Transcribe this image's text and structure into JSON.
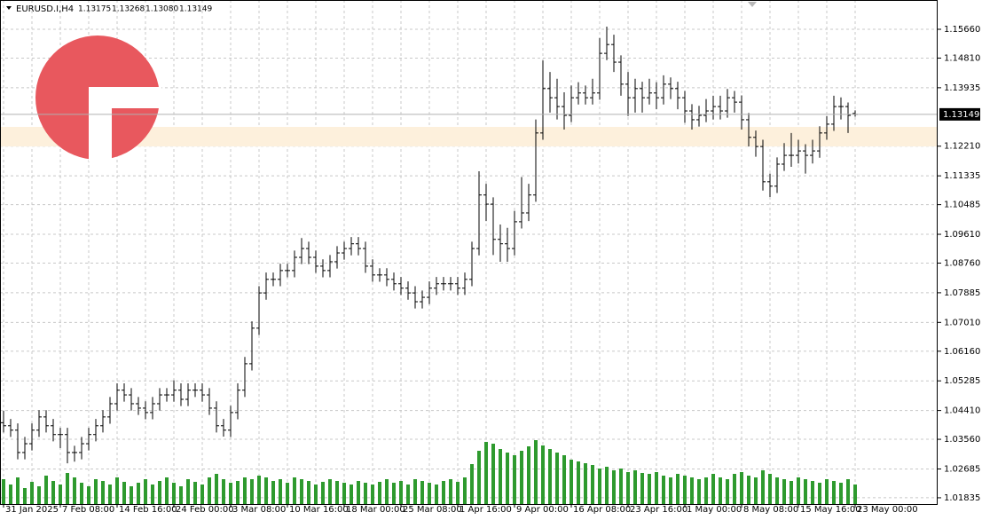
{
  "chart_data": {
    "type": "ohlc",
    "title": "EURUSD.I,H4",
    "last_bar_labels": [
      "1.13175",
      "1.13268",
      "1.13080",
      "1.13149"
    ],
    "current_price": 1.13149,
    "color": "#000000",
    "volume_color": "#2e9a2e",
    "grid": true,
    "ylim": [
      1.0165,
      1.16524
    ],
    "yticks": [
      {
        "value": 1.1566,
        "label": "1.15660"
      },
      {
        "value": 1.1481,
        "label": "1.14810"
      },
      {
        "value": 1.13935,
        "label": "1.13935"
      },
      {
        "value": 1.1221,
        "label": "1.12210"
      },
      {
        "value": 1.11335,
        "label": "1.11335"
      },
      {
        "value": 1.10485,
        "label": "1.10485"
      },
      {
        "value": 1.0961,
        "label": "1.09610"
      },
      {
        "value": 1.0876,
        "label": "1.08760"
      },
      {
        "value": 1.07885,
        "label": "1.07885"
      },
      {
        "value": 1.0701,
        "label": "1.07010"
      },
      {
        "value": 1.0616,
        "label": "1.06160"
      },
      {
        "value": 1.05285,
        "label": "1.05285"
      },
      {
        "value": 1.0441,
        "label": "1.04410"
      },
      {
        "value": 1.0356,
        "label": "1.03560"
      },
      {
        "value": 1.02685,
        "label": "1.02685"
      },
      {
        "value": 1.01835,
        "label": "1.01835"
      }
    ],
    "volume_lim": [
      0,
      100
    ],
    "categories": [
      "31 Jan 2025",
      null,
      null,
      null,
      null,
      null,
      null,
      null,
      "7 Feb 08:00",
      null,
      null,
      null,
      null,
      null,
      null,
      null,
      "14 Feb 16:00",
      null,
      null,
      null,
      null,
      null,
      null,
      null,
      "24 Feb 00:00",
      null,
      null,
      null,
      null,
      null,
      null,
      null,
      "3 Mar 08:00",
      null,
      null,
      null,
      null,
      null,
      null,
      null,
      "10 Mar 16:00",
      null,
      null,
      null,
      null,
      null,
      null,
      null,
      "18 Mar 00:00",
      null,
      null,
      null,
      null,
      null,
      null,
      null,
      "25 Mar 08:00",
      null,
      null,
      null,
      null,
      null,
      null,
      null,
      "1 Apr 16:00",
      null,
      null,
      null,
      null,
      null,
      null,
      null,
      "9 Apr 00:00",
      null,
      null,
      null,
      null,
      null,
      null,
      null,
      "16 Apr 08:00",
      null,
      null,
      null,
      null,
      null,
      null,
      null,
      "23 Apr 16:00",
      null,
      null,
      null,
      null,
      null,
      null,
      null,
      "1 May 00:00",
      null,
      null,
      null,
      null,
      null,
      null,
      null,
      "8 May 08:00",
      null,
      null,
      null,
      null,
      null,
      null,
      null,
      "15 May 16:00",
      null,
      null,
      null,
      null,
      null,
      null,
      null,
      "23 May 00:00"
    ],
    "open": [
      1.0405,
      1.0396,
      1.0383,
      1.0317,
      1.0343,
      1.0383,
      1.0422,
      1.0396,
      1.037,
      1.037,
      1.0317,
      1.0317,
      1.0343,
      1.037,
      1.0396,
      1.0422,
      1.0461,
      1.0501,
      1.0487,
      1.0461,
      1.0448,
      1.0435,
      1.0461,
      1.0487,
      1.0487,
      1.0501,
      1.0474,
      1.0501,
      1.0501,
      1.0487,
      1.0448,
      1.0396,
      1.0383,
      1.0435,
      1.0501,
      1.0579,
      1.0684,
      1.0788,
      1.0828,
      1.0828,
      1.0854,
      1.0854,
      1.0893,
      1.0919,
      1.0893,
      1.0867,
      1.0854,
      1.088,
      1.0906,
      1.0919,
      1.0933,
      1.0919,
      1.0867,
      1.0841,
      1.0841,
      1.0828,
      1.0815,
      1.0802,
      1.0788,
      1.0762,
      1.0775,
      1.0802,
      1.0815,
      1.0815,
      1.0815,
      1.0802,
      1.0828,
      1.0919,
      1.1077,
      1.105,
      1.0946,
      1.0933,
      1.0919,
      1.0998,
      1.1024,
      1.1077,
      1.126,
      1.1391,
      1.1364,
      1.1338,
      1.1312,
      1.1364,
      1.1378,
      1.1364,
      1.1378,
      1.1495,
      1.1521,
      1.1469,
      1.1404,
      1.1364,
      1.1391,
      1.1364,
      1.1378,
      1.1364,
      1.1404,
      1.1391,
      1.1364,
      1.1325,
      1.1299,
      1.1312,
      1.1325,
      1.1338,
      1.1325,
      1.1364,
      1.1351,
      1.1299,
      1.1247,
      1.122,
      1.1116,
      1.1103,
      1.1168,
      1.1194,
      1.1194,
      1.1207,
      1.1194,
      1.1207,
      1.126,
      1.1286,
      1.1338,
      1.1338,
      1.13175
    ],
    "high": [
      1.044,
      1.0416,
      1.0403,
      1.0363,
      1.0403,
      1.0442,
      1.0442,
      1.0416,
      1.039,
      1.039,
      1.0337,
      1.0363,
      1.039,
      1.0416,
      1.0442,
      1.0481,
      1.0521,
      1.0521,
      1.0507,
      1.0481,
      1.0468,
      1.0481,
      1.0507,
      1.0507,
      1.053,
      1.0521,
      1.0521,
      1.0521,
      1.0521,
      1.0507,
      1.0468,
      1.0416,
      1.0455,
      1.0521,
      1.0599,
      1.0704,
      1.0808,
      1.0848,
      1.0848,
      1.0874,
      1.0874,
      1.0913,
      1.095,
      1.0939,
      1.0913,
      1.0887,
      1.09,
      1.0926,
      1.0939,
      1.0953,
      1.0953,
      1.0939,
      1.0887,
      1.0861,
      1.0861,
      1.0848,
      1.0835,
      1.0822,
      1.0808,
      1.0795,
      1.0822,
      1.0835,
      1.0835,
      1.0835,
      1.0835,
      1.0848,
      1.0939,
      1.1147,
      1.111,
      1.107,
      1.099,
      1.098,
      1.103,
      1.113,
      1.111,
      1.13,
      1.1474,
      1.144,
      1.142,
      1.138,
      1.14,
      1.141,
      1.14,
      1.142,
      1.154,
      1.1574,
      1.155,
      1.1489,
      1.144,
      1.142,
      1.1411,
      1.142,
      1.141,
      1.143,
      1.1424,
      1.1411,
      1.1384,
      1.1345,
      1.134,
      1.136,
      1.137,
      1.137,
      1.139,
      1.1384,
      1.1371,
      1.1319,
      1.1267,
      1.124,
      1.114,
      1.1188,
      1.123,
      1.126,
      1.124,
      1.1227,
      1.124,
      1.128,
      1.131,
      1.137,
      1.1365,
      1.135,
      1.13268
    ],
    "low": [
      1.0376,
      1.0363,
      1.0297,
      1.0297,
      1.0323,
      1.0363,
      1.0376,
      1.035,
      1.033,
      1.0285,
      1.029,
      1.0297,
      1.0323,
      1.035,
      1.0376,
      1.0402,
      1.0441,
      1.0467,
      1.0441,
      1.0428,
      1.0415,
      1.0415,
      1.0441,
      1.0467,
      1.0467,
      1.0454,
      1.0454,
      1.0481,
      1.0467,
      1.0428,
      1.0376,
      1.0364,
      1.0363,
      1.0415,
      1.0481,
      1.0559,
      1.0664,
      1.0768,
      1.0808,
      1.0808,
      1.0834,
      1.0834,
      1.0873,
      1.0873,
      1.0847,
      1.0834,
      1.0834,
      1.086,
      1.0886,
      1.0899,
      1.0899,
      1.0847,
      1.0821,
      1.0821,
      1.0808,
      1.0795,
      1.0782,
      1.0768,
      1.0742,
      1.0742,
      1.0755,
      1.0782,
      1.0795,
      1.0795,
      1.0782,
      1.0782,
      1.0808,
      1.0899,
      1.1,
      1.09,
      1.088,
      1.088,
      1.0899,
      1.0978,
      1.1,
      1.1057,
      1.124,
      1.132,
      1.13,
      1.127,
      1.1292,
      1.1344,
      1.1344,
      1.1344,
      1.1358,
      1.1475,
      1.144,
      1.137,
      1.131,
      1.132,
      1.132,
      1.1344,
      1.133,
      1.1344,
      1.136,
      1.133,
      1.129,
      1.127,
      1.1279,
      1.1292,
      1.13,
      1.13,
      1.1305,
      1.132,
      1.127,
      1.122,
      1.119,
      1.109,
      1.1071,
      1.1083,
      1.1148,
      1.116,
      1.117,
      1.114,
      1.117,
      1.1187,
      1.124,
      1.1266,
      1.13,
      1.126,
      1.1308
    ],
    "close": [
      1.0396,
      1.0383,
      1.0317,
      1.0343,
      1.0383,
      1.0422,
      1.0396,
      1.037,
      1.037,
      1.0317,
      1.0317,
      1.0343,
      1.037,
      1.0396,
      1.0422,
      1.0461,
      1.0501,
      1.0487,
      1.0461,
      1.0448,
      1.0435,
      1.0461,
      1.0487,
      1.0487,
      1.0501,
      1.0474,
      1.0501,
      1.0501,
      1.0487,
      1.0448,
      1.0396,
      1.0383,
      1.0435,
      1.0501,
      1.0579,
      1.0684,
      1.0788,
      1.0828,
      1.0828,
      1.0854,
      1.0854,
      1.0893,
      1.0919,
      1.0893,
      1.0867,
      1.0854,
      1.088,
      1.0906,
      1.0919,
      1.0933,
      1.0919,
      1.0867,
      1.0841,
      1.0841,
      1.0828,
      1.0815,
      1.0802,
      1.0788,
      1.0762,
      1.0775,
      1.0802,
      1.0815,
      1.0815,
      1.0815,
      1.0802,
      1.0828,
      1.0919,
      1.1077,
      1.105,
      1.0946,
      1.0933,
      1.0919,
      1.0998,
      1.1024,
      1.1077,
      1.126,
      1.1391,
      1.1364,
      1.1338,
      1.1312,
      1.1364,
      1.1378,
      1.1364,
      1.1378,
      1.1495,
      1.1521,
      1.1469,
      1.1404,
      1.1364,
      1.1391,
      1.1364,
      1.1378,
      1.1364,
      1.1404,
      1.1391,
      1.1364,
      1.1325,
      1.1299,
      1.1312,
      1.1325,
      1.1338,
      1.1325,
      1.1364,
      1.1351,
      1.1299,
      1.1247,
      1.122,
      1.1116,
      1.1103,
      1.1168,
      1.1194,
      1.1194,
      1.1207,
      1.1194,
      1.1207,
      1.126,
      1.1286,
      1.1338,
      1.1338,
      1.1312,
      1.13149
    ],
    "volume": [
      28,
      22,
      30,
      18,
      25,
      20,
      32,
      26,
      22,
      35,
      30,
      24,
      20,
      28,
      26,
      22,
      30,
      25,
      20,
      24,
      28,
      22,
      26,
      30,
      24,
      20,
      28,
      25,
      22,
      30,
      34,
      28,
      24,
      26,
      30,
      28,
      32,
      30,
      26,
      28,
      24,
      30,
      28,
      26,
      22,
      25,
      28,
      26,
      24,
      22,
      26,
      24,
      22,
      25,
      28,
      24,
      26,
      22,
      28,
      26,
      24,
      22,
      26,
      28,
      25,
      30,
      45,
      60,
      70,
      68,
      62,
      58,
      55,
      60,
      65,
      72,
      66,
      62,
      58,
      55,
      50,
      48,
      46,
      44,
      40,
      42,
      38,
      40,
      36,
      38,
      35,
      34,
      36,
      32,
      30,
      34,
      32,
      30,
      28,
      30,
      34,
      30,
      28,
      34,
      36,
      32,
      30,
      38,
      34,
      30,
      28,
      26,
      30,
      28,
      26,
      24,
      28,
      26,
      24,
      28,
      22
    ]
  }
}
